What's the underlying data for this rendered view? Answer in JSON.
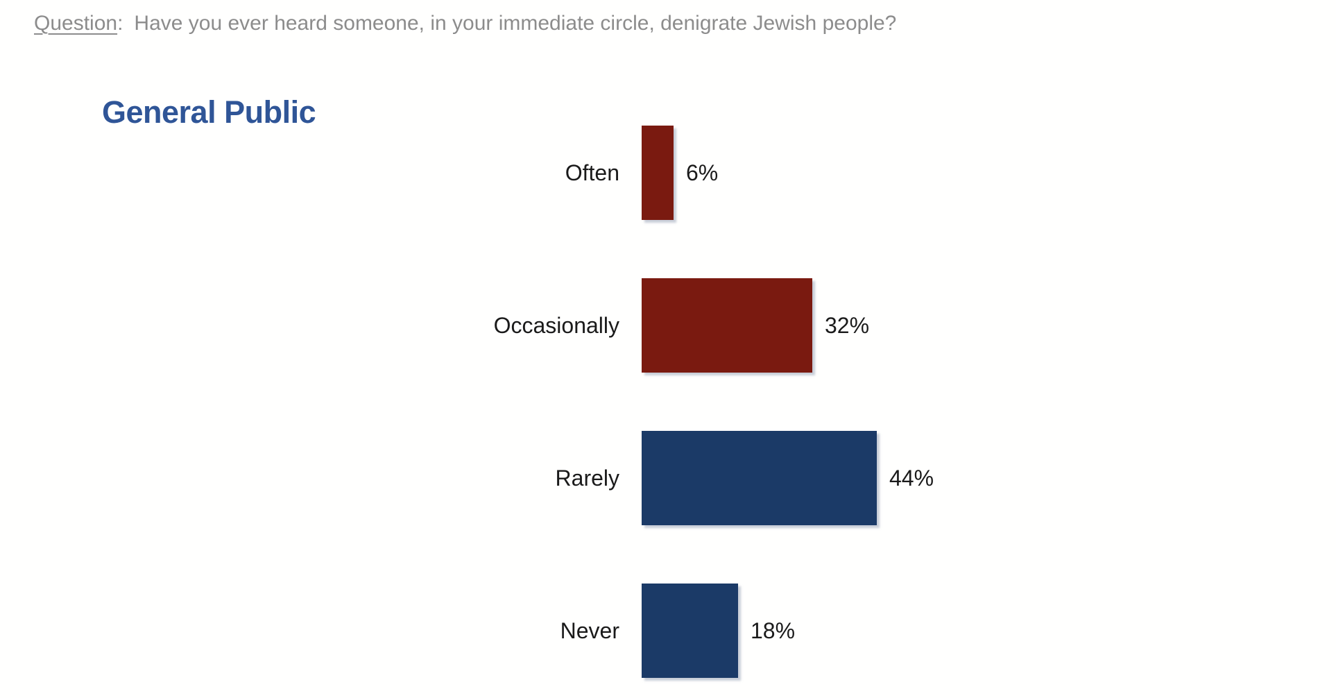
{
  "question": {
    "label": "Question",
    "separator": ":",
    "text": "Have you ever heard someone, in your immediate circle, denigrate Jewish people?"
  },
  "title": "General Public",
  "colors": {
    "question_text": "#8C8C8C",
    "title_text": "#2F5597",
    "label_text": "#1A1A1A",
    "dark_red": "#7A1A10",
    "navy": "#1B3A67",
    "background": "#FFFFFE"
  },
  "chart_data": {
    "type": "bar",
    "orientation": "horizontal",
    "title": "General Public",
    "subtitle": "Question: Have you ever heard someone, in your immediate circle, denigrate Jewish people?",
    "categories": [
      "Often",
      "Occasionally",
      "Rarely",
      "Never"
    ],
    "values": [
      6,
      32,
      44,
      18
    ],
    "value_labels": [
      "6%",
      "32%",
      "44%",
      "18%"
    ],
    "bar_colors": [
      "#7A1A10",
      "#7A1A10",
      "#1B3A67",
      "#1B3A67"
    ],
    "xlabel": "",
    "ylabel": "",
    "xlim": [
      0,
      100
    ],
    "grid": false,
    "axis_visible": false,
    "legend": false,
    "data_labels_position": "outside-end"
  }
}
